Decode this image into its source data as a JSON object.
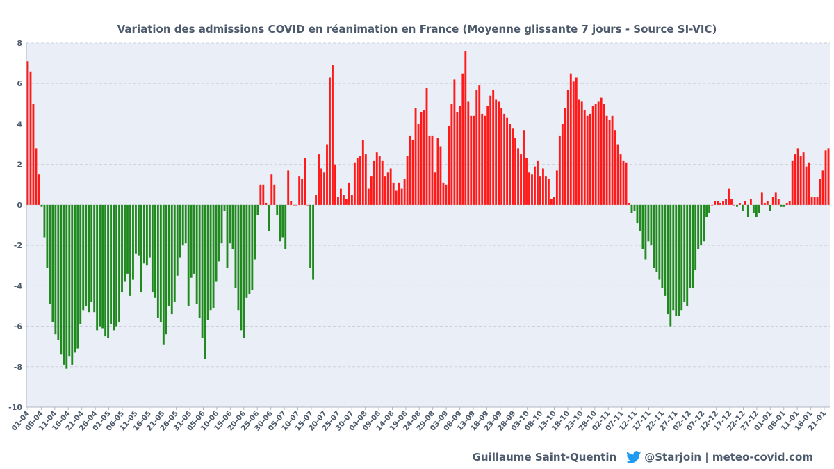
{
  "chart_data": {
    "type": "bar",
    "title": "Variation des admissions COVID en réanimation en France (Moyenne glissante 7 jours - Source SI-VIC)",
    "xlabel": "",
    "ylabel": "",
    "ylim": [
      -10,
      8
    ],
    "yticks": [
      -10,
      -8,
      -6,
      -4,
      -2,
      0,
      2,
      4,
      6,
      8
    ],
    "grid": true,
    "colors": {
      "positive": "#ff1a1a",
      "negative": "#218a1f",
      "grid": "#c9d2dc",
      "plot_bg": "#eaeef7",
      "text": "#4d5a6c"
    },
    "tick_labels": [
      "01-04",
      "06-04",
      "11-04",
      "16-04",
      "21-04",
      "26-04",
      "01-05",
      "06-05",
      "11-05",
      "16-05",
      "21-05",
      "26-05",
      "31-05",
      "05-06",
      "10-06",
      "15-06",
      "20-06",
      "25-06",
      "30-06",
      "05-07",
      "10-07",
      "15-07",
      "20-07",
      "25-07",
      "30-07",
      "04-08",
      "09-08",
      "14-08",
      "19-08",
      "24-08",
      "29-08",
      "03-09",
      "08-09",
      "13-09",
      "18-09",
      "23-09",
      "28-09",
      "03-10",
      "08-10",
      "13-10",
      "18-10",
      "23-10",
      "28-10",
      "02-11",
      "07-11",
      "12-11",
      "17-11",
      "22-11",
      "27-11",
      "02-12",
      "07-12",
      "12-12",
      "17-12",
      "22-12",
      "27-12",
      "01-01",
      "06-01",
      "11-01",
      "16-01",
      "21-01"
    ],
    "values": [
      7.1,
      6.6,
      5.0,
      2.8,
      1.5,
      -0.1,
      -1.6,
      -3.1,
      -4.9,
      -5.8,
      -6.4,
      -6.7,
      -7.4,
      -7.9,
      -8.1,
      -7.5,
      -7.9,
      -7.3,
      -7.1,
      -5.9,
      -5.2,
      -5.0,
      -5.3,
      -4.8,
      -5.3,
      -6.2,
      -6.0,
      -6.1,
      -6.5,
      -6.6,
      -5.9,
      -6.2,
      -6.0,
      -5.8,
      -4.3,
      -3.8,
      -3.4,
      -4.5,
      -3.7,
      -2.4,
      -2.5,
      -4.3,
      -2.9,
      -3.0,
      -2.6,
      -4.3,
      -4.6,
      -5.6,
      -5.8,
      -6.9,
      -6.4,
      -5.0,
      -5.4,
      -4.8,
      -3.5,
      -2.6,
      -2.0,
      -1.9,
      -5.0,
      -3.6,
      -3.4,
      -4.9,
      -5.6,
      -6.6,
      -7.6,
      -5.7,
      -5.2,
      -5.1,
      -3.8,
      -2.8,
      -1.9,
      -0.3,
      -3.1,
      -1.9,
      -2.2,
      -4.1,
      -5.2,
      -6.2,
      -6.6,
      -4.6,
      -4.4,
      -4.2,
      -2.7,
      -0.5,
      1.0,
      1.0,
      0.1,
      -1.3,
      1.5,
      1.0,
      -0.5,
      -1.8,
      -1.6,
      -2.2,
      1.7,
      0.2,
      0.0,
      0.0,
      1.4,
      1.3,
      2.3,
      0.0,
      -3.1,
      -3.7,
      0.5,
      2.5,
      1.8,
      1.6,
      3.0,
      6.3,
      6.9,
      2.0,
      0.4,
      0.8,
      0.5,
      0.3,
      1.1,
      0.5,
      2.1,
      2.3,
      2.4,
      3.2,
      2.5,
      0.8,
      1.4,
      2.2,
      2.6,
      2.4,
      2.2,
      1.4,
      1.6,
      1.8,
      1.1,
      0.7,
      1.1,
      0.8,
      1.3,
      2.4,
      3.4,
      3.2,
      4.8,
      4.0,
      4.6,
      4.7,
      5.8,
      3.4,
      3.4,
      1.6,
      3.3,
      2.9,
      1.1,
      1.0,
      3.9,
      5.0,
      6.2,
      4.6,
      4.9,
      6.5,
      7.6,
      5.1,
      4.4,
      4.4,
      5.7,
      5.9,
      4.5,
      4.4,
      4.9,
      5.4,
      5.7,
      5.2,
      5.1,
      4.8,
      4.5,
      4.3,
      4.0,
      3.8,
      3.3,
      2.8,
      2.5,
      3.7,
      2.3,
      1.6,
      1.5,
      1.9,
      2.2,
      1.4,
      1.8,
      1.4,
      1.3,
      0.3,
      0.4,
      1.7,
      3.4,
      4.0,
      4.8,
      5.7,
      6.5,
      6.1,
      6.3,
      5.2,
      5.1,
      4.7,
      4.4,
      4.5,
      4.9,
      5.0,
      5.1,
      5.3,
      5.0,
      4.4,
      4.2,
      4.4,
      3.7,
      3.0,
      2.5,
      2.2,
      2.1,
      0.1,
      -0.4,
      -0.3,
      -0.9,
      -1.3,
      -2.2,
      -2.7,
      -1.8,
      -2.0,
      -3.1,
      -3.3,
      -3.7,
      -4.1,
      -4.5,
      -5.4,
      -6.0,
      -5.2,
      -5.5,
      -5.5,
      -5.2,
      -4.8,
      -5.0,
      -4.1,
      -4.1,
      -3.2,
      -2.2,
      -2.0,
      -1.8,
      -0.6,
      -0.4,
      0.0,
      0.2,
      0.2,
      0.1,
      0.2,
      0.3,
      0.8,
      0.3,
      0.0,
      -0.1,
      0.1,
      -0.3,
      0.2,
      -0.6,
      0.3,
      -0.4,
      -0.6,
      -0.4,
      0.6,
      0.1,
      0.2,
      -0.3,
      0.4,
      0.6,
      0.3,
      -0.1,
      -0.1,
      0.1,
      0.2,
      2.2,
      2.5,
      2.8,
      2.4,
      2.6,
      1.9,
      2.1,
      0.4,
      0.4,
      0.4,
      1.3,
      1.7,
      2.7,
      2.8
    ]
  },
  "footer": {
    "author": "Guillaume Saint-Quentin",
    "handle": "@Starjoin | meteo-covid.com"
  }
}
